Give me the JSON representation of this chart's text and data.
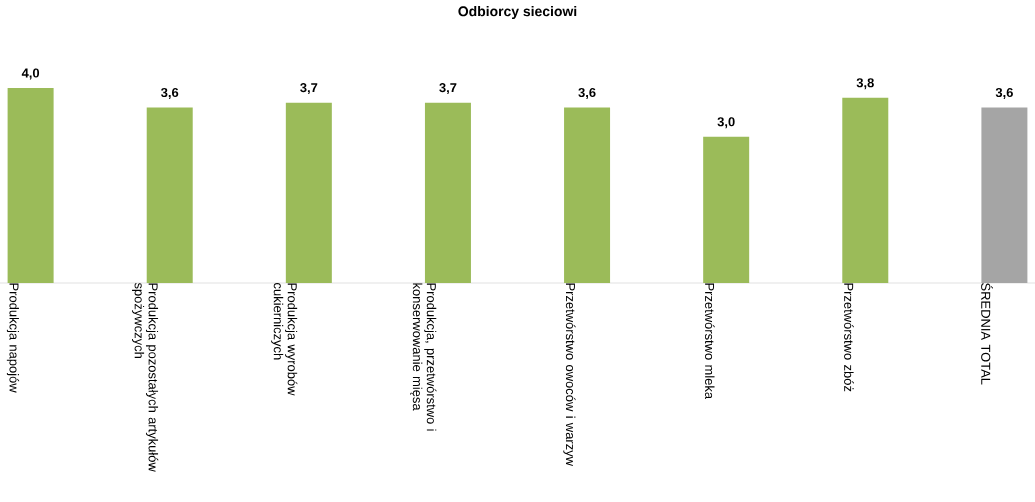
{
  "chart_data": {
    "type": "bar",
    "title": "Odbiorcy sieciowi",
    "categories": [
      "Produkcja napojów",
      "Produkcja pozostałych artykułów spożywczych",
      "Produkcja wyrobów cukierniczych",
      "Produkcja, przetwórstwo i konserwowanie mięsa",
      "Przetwórstwo owoców i warzyw",
      "Przetwórstwo mleka",
      "Przetwórstwo zbóż",
      "ŚREDNIA TOTAL"
    ],
    "values": [
      4.0,
      3.6,
      3.7,
      3.7,
      3.6,
      3.0,
      3.8,
      3.6
    ],
    "value_labels": [
      "4,0",
      "3,6",
      "3,7",
      "3,7",
      "3,6",
      "3,0",
      "3,8",
      "3,6"
    ],
    "colors": [
      "#9bbb59",
      "#9bbb59",
      "#9bbb59",
      "#9bbb59",
      "#9bbb59",
      "#9bbb59",
      "#9bbb59",
      "#a5a5a5"
    ]
  }
}
